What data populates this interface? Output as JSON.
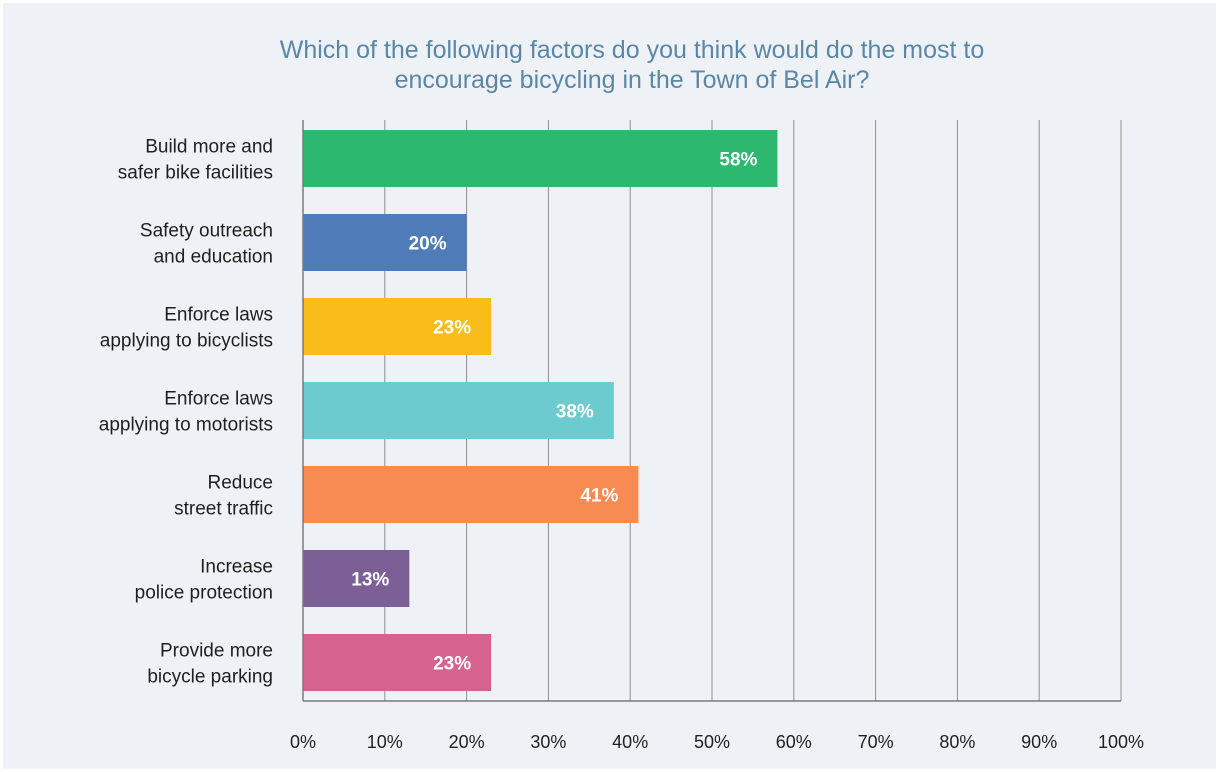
{
  "chart_data": {
    "type": "bar",
    "orientation": "horizontal",
    "title": "Which of the following factors do you think would do the most to encourage bicycling in the Town of Bel Air?",
    "title_lines": [
      "Which of the following factors do you think would do the most to",
      "encourage bicycling in the Town of Bel Air?"
    ],
    "categories": [
      [
        "Build more and",
        "safer bike facilities"
      ],
      [
        "Safety outreach",
        "and education"
      ],
      [
        "Enforce laws",
        "applying to bicyclists"
      ],
      [
        "Enforce laws",
        "applying to motorists"
      ],
      [
        "Reduce",
        "street traffic"
      ],
      [
        "Increase",
        "police protection"
      ],
      [
        "Provide more",
        "bicycle parking"
      ]
    ],
    "values": [
      58,
      20,
      23,
      38,
      41,
      13,
      23
    ],
    "data_labels": [
      "58%",
      "20%",
      "23%",
      "38%",
      "41%",
      "13%",
      "23%"
    ],
    "colors": [
      "#2db870",
      "#4f7cb8",
      "#f8bd19",
      "#6ccbce",
      "#f78b52",
      "#7c5f96",
      "#d6628f"
    ],
    "xlim": [
      0,
      100
    ],
    "xticks": [
      0,
      10,
      20,
      30,
      40,
      50,
      60,
      70,
      80,
      90,
      100
    ],
    "xtick_labels": [
      "0%",
      "10%",
      "20%",
      "30%",
      "40%",
      "50%",
      "60%",
      "70%",
      "80%",
      "90%",
      "100%"
    ],
    "xlabel": "",
    "ylabel": "",
    "grid": true,
    "legend": "none",
    "title_color": "#5b87a6",
    "background_color": "#eef2f6"
  }
}
